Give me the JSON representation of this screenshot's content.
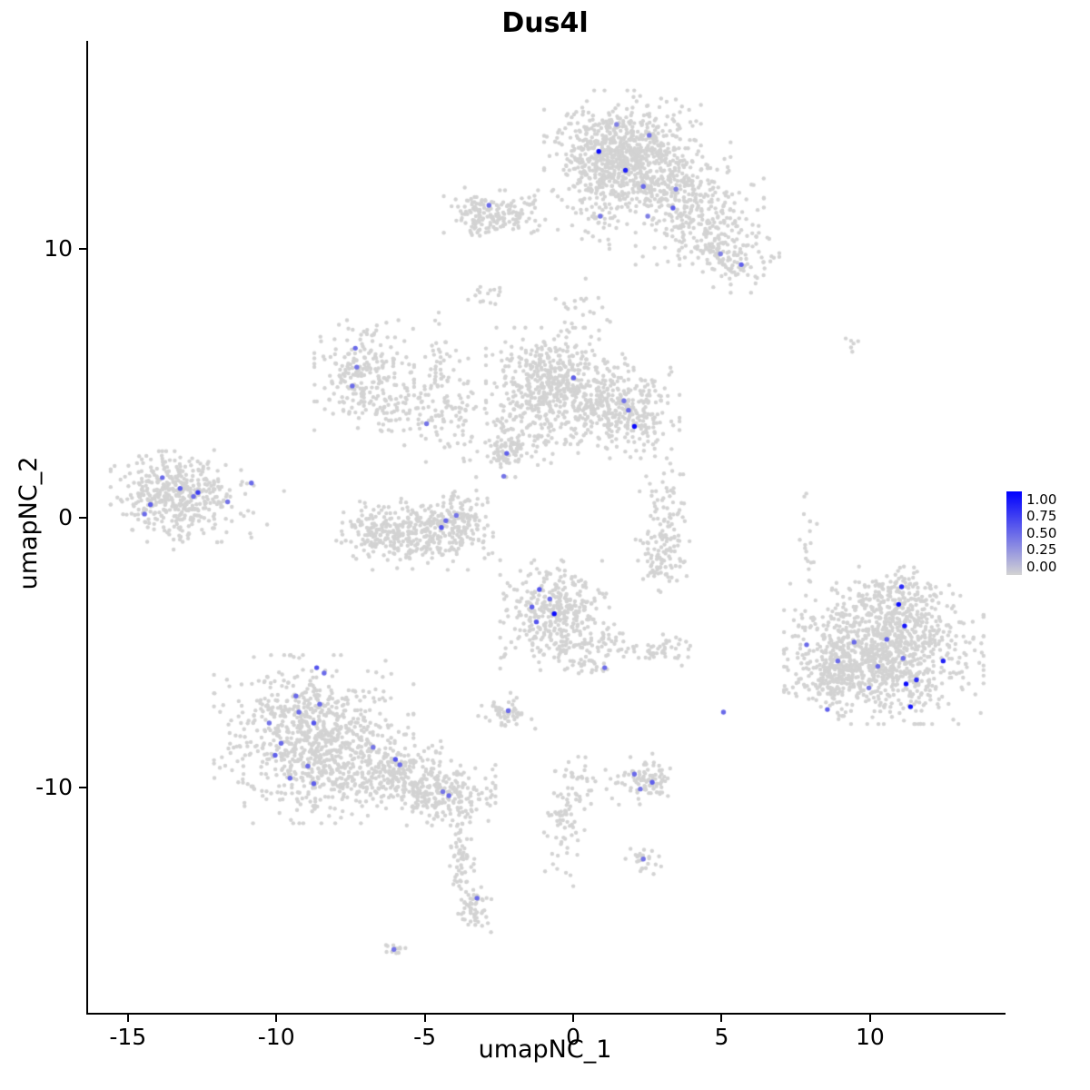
{
  "title": "Dus4l",
  "axes": {
    "x": {
      "label": "umapNC_1",
      "ticks": [
        -15,
        -10,
        -5,
        0,
        5,
        10
      ]
    },
    "y": {
      "label": "umapNC_2",
      "ticks": [
        -10,
        0,
        10
      ]
    }
  },
  "legend": {
    "labels": [
      "1.00",
      "0.75",
      "0.50",
      "0.25",
      "0.00"
    ],
    "color_high": "#0000ff",
    "color_low": "#d3d3d3"
  },
  "colors": {
    "background": "#ffffff",
    "base_point": "#d3d3d3",
    "axis": "#000000"
  },
  "chart_data": {
    "type": "scatter",
    "title": "Dus4l",
    "xlabel": "umapNC_1",
    "ylabel": "umapNC_2",
    "x_range": [
      -16.4,
      14.5
    ],
    "y_range": [
      -18.35,
      17.7
    ],
    "x_ticks": [
      -15,
      -10,
      -5,
      0,
      5,
      10
    ],
    "y_ticks": [
      -10,
      0,
      10
    ],
    "grid": false,
    "legend_position": "right",
    "color_scale": {
      "low": "#d3d3d3",
      "high": "#0000ff",
      "domain": [
        0,
        1
      ],
      "legend_ticks": [
        1.0,
        0.75,
        0.5,
        0.25,
        0.0
      ]
    },
    "points_total_approx": 7600,
    "cluster_format": [
      "center_x",
      "center_y",
      "sd_x",
      "sd_y",
      "n_points"
    ],
    "clusters": [
      [
        1.6,
        13.7,
        1.1,
        0.9,
        600
      ],
      [
        2.6,
        12.6,
        1.1,
        0.8,
        300
      ],
      [
        4.2,
        11.2,
        0.9,
        0.8,
        220
      ],
      [
        5.2,
        9.8,
        0.7,
        0.6,
        130
      ],
      [
        0.9,
        12.2,
        0.5,
        1.0,
        120
      ],
      [
        -2.5,
        11.2,
        0.8,
        0.4,
        130
      ],
      [
        -3.3,
        11.3,
        0.3,
        0.4,
        50
      ],
      [
        -7.1,
        5.3,
        0.7,
        0.85,
        230
      ],
      [
        -5.6,
        3.9,
        0.8,
        0.5,
        70
      ],
      [
        -4.6,
        6.0,
        0.3,
        0.8,
        45
      ],
      [
        -0.6,
        4.9,
        1.0,
        0.9,
        550
      ],
      [
        1.6,
        3.9,
        0.8,
        0.7,
        280
      ],
      [
        -2.0,
        3.2,
        0.9,
        0.7,
        90
      ],
      [
        -2.3,
        2.4,
        0.3,
        0.25,
        60
      ],
      [
        -13.6,
        0.8,
        0.85,
        0.7,
        380
      ],
      [
        -12.2,
        0.6,
        1.0,
        0.8,
        70
      ],
      [
        -5.4,
        -0.6,
        1.1,
        0.55,
        330
      ],
      [
        -3.9,
        0.0,
        0.4,
        0.5,
        90
      ],
      [
        -6.9,
        -0.4,
        0.4,
        0.4,
        60
      ],
      [
        3.0,
        -1.3,
        0.4,
        0.6,
        90
      ],
      [
        3.2,
        0.4,
        0.45,
        0.9,
        60
      ],
      [
        -0.6,
        -3.6,
        0.8,
        0.85,
        380
      ],
      [
        0.8,
        -4.8,
        0.5,
        0.4,
        70
      ],
      [
        2.8,
        -4.9,
        0.45,
        0.25,
        45
      ],
      [
        -2.3,
        -7.2,
        0.4,
        0.3,
        55
      ],
      [
        -8.8,
        -8.2,
        1.4,
        1.3,
        850
      ],
      [
        -6.3,
        -9.4,
        0.9,
        0.6,
        220
      ],
      [
        -4.6,
        -10.2,
        0.8,
        0.5,
        220
      ],
      [
        -3.8,
        -12.3,
        0.2,
        1.0,
        70
      ],
      [
        -3.4,
        -14.4,
        0.3,
        0.4,
        55
      ],
      [
        -6.1,
        -16.0,
        0.2,
        0.15,
        12
      ],
      [
        10.4,
        -5.0,
        1.4,
        1.1,
        1000
      ],
      [
        8.8,
        -5.9,
        0.7,
        0.6,
        180
      ],
      [
        10.8,
        -3.0,
        0.9,
        0.5,
        150
      ],
      [
        2.3,
        -9.7,
        0.5,
        0.4,
        90
      ],
      [
        -0.4,
        -11.5,
        0.3,
        1.0,
        55
      ],
      [
        0.1,
        -9.8,
        0.4,
        0.5,
        40
      ],
      [
        2.3,
        -12.7,
        0.25,
        0.25,
        25
      ],
      [
        -3.0,
        8.2,
        0.25,
        0.2,
        15
      ],
      [
        -4.4,
        4.0,
        0.5,
        0.8,
        60
      ],
      [
        0.2,
        7.6,
        0.5,
        0.6,
        22
      ],
      [
        7.8,
        -0.4,
        0.15,
        0.8,
        18
      ],
      [
        9.4,
        6.4,
        0.15,
        0.25,
        6
      ]
    ],
    "highlight_format": [
      "x",
      "y",
      "expression_0_to_1"
    ],
    "highlight_points": [
      [
        0.8,
        13.6,
        0.95
      ],
      [
        1.7,
        12.9,
        0.85
      ],
      [
        2.5,
        14.2,
        0.45
      ],
      [
        1.4,
        14.6,
        0.4
      ],
      [
        2.3,
        12.3,
        0.5
      ],
      [
        3.3,
        11.5,
        0.55
      ],
      [
        0.85,
        11.2,
        0.45
      ],
      [
        2.45,
        11.2,
        0.4
      ],
      [
        5.6,
        9.4,
        0.55
      ],
      [
        4.9,
        9.8,
        0.4
      ],
      [
        3.4,
        12.2,
        0.4
      ],
      [
        -2.9,
        11.6,
        0.5
      ],
      [
        -7.4,
        6.3,
        0.5
      ],
      [
        -7.35,
        5.6,
        0.45
      ],
      [
        -7.5,
        4.9,
        0.5
      ],
      [
        -0.05,
        5.2,
        0.55
      ],
      [
        1.65,
        4.35,
        0.45
      ],
      [
        2.0,
        3.4,
        0.95
      ],
      [
        1.8,
        4.0,
        0.5
      ],
      [
        -5.0,
        3.5,
        0.45
      ],
      [
        -2.3,
        2.4,
        0.55
      ],
      [
        -2.4,
        1.55,
        0.45
      ],
      [
        -4.35,
        -0.1,
        0.5
      ],
      [
        -4.5,
        -0.35,
        0.6
      ],
      [
        -4.0,
        0.1,
        0.45
      ],
      [
        -13.9,
        1.5,
        0.5
      ],
      [
        -13.3,
        1.1,
        0.55
      ],
      [
        -12.7,
        0.95,
        0.7
      ],
      [
        -12.85,
        0.8,
        0.5
      ],
      [
        -14.3,
        0.5,
        0.55
      ],
      [
        -14.5,
        0.15,
        0.5
      ],
      [
        -11.7,
        0.6,
        0.45
      ],
      [
        -10.9,
        1.3,
        0.5
      ],
      [
        -1.2,
        -2.65,
        0.6
      ],
      [
        -0.85,
        -3.0,
        0.5
      ],
      [
        -1.45,
        -3.3,
        0.55
      ],
      [
        -0.7,
        -3.55,
        0.95
      ],
      [
        -1.3,
        -3.85,
        0.6
      ],
      [
        1.0,
        -5.55,
        0.5
      ],
      [
        -2.25,
        -7.15,
        0.5
      ],
      [
        -8.7,
        -5.55,
        0.6
      ],
      [
        -8.45,
        -5.75,
        0.5
      ],
      [
        -9.4,
        -6.6,
        0.5
      ],
      [
        -8.6,
        -6.9,
        0.5
      ],
      [
        -8.8,
        -7.6,
        0.6
      ],
      [
        -9.9,
        -8.35,
        0.5
      ],
      [
        -10.1,
        -8.8,
        0.55
      ],
      [
        -9.0,
        -9.2,
        0.5
      ],
      [
        -8.8,
        -9.85,
        0.55
      ],
      [
        -9.6,
        -9.65,
        0.5
      ],
      [
        -6.8,
        -8.5,
        0.45
      ],
      [
        -6.05,
        -8.95,
        0.6
      ],
      [
        -5.9,
        -9.15,
        0.5
      ],
      [
        -4.25,
        -10.3,
        0.5
      ],
      [
        -4.45,
        -10.15,
        0.45
      ],
      [
        -10.3,
        -7.6,
        0.45
      ],
      [
        -9.3,
        -7.2,
        0.5
      ],
      [
        -3.3,
        -14.1,
        0.5
      ],
      [
        -6.1,
        -16.0,
        0.45
      ],
      [
        11.0,
        -2.55,
        0.8
      ],
      [
        10.9,
        -3.2,
        0.95
      ],
      [
        11.1,
        -4.0,
        0.9
      ],
      [
        10.5,
        -4.5,
        0.55
      ],
      [
        11.05,
        -5.2,
        0.5
      ],
      [
        10.2,
        -5.5,
        0.5
      ],
      [
        11.5,
        -6.0,
        0.8
      ],
      [
        11.15,
        -6.15,
        0.95
      ],
      [
        12.4,
        -5.3,
        0.85
      ],
      [
        11.3,
        -7.0,
        0.9
      ],
      [
        9.4,
        -4.6,
        0.5
      ],
      [
        8.85,
        -5.3,
        0.5
      ],
      [
        8.5,
        -7.1,
        0.55
      ],
      [
        9.9,
        -6.3,
        0.45
      ],
      [
        7.8,
        -4.7,
        0.5
      ],
      [
        2.0,
        -9.5,
        0.5
      ],
      [
        2.6,
        -9.8,
        0.55
      ],
      [
        2.2,
        -10.05,
        0.45
      ],
      [
        5.0,
        -7.2,
        0.5
      ],
      [
        2.3,
        -12.65,
        0.45
      ]
    ]
  }
}
